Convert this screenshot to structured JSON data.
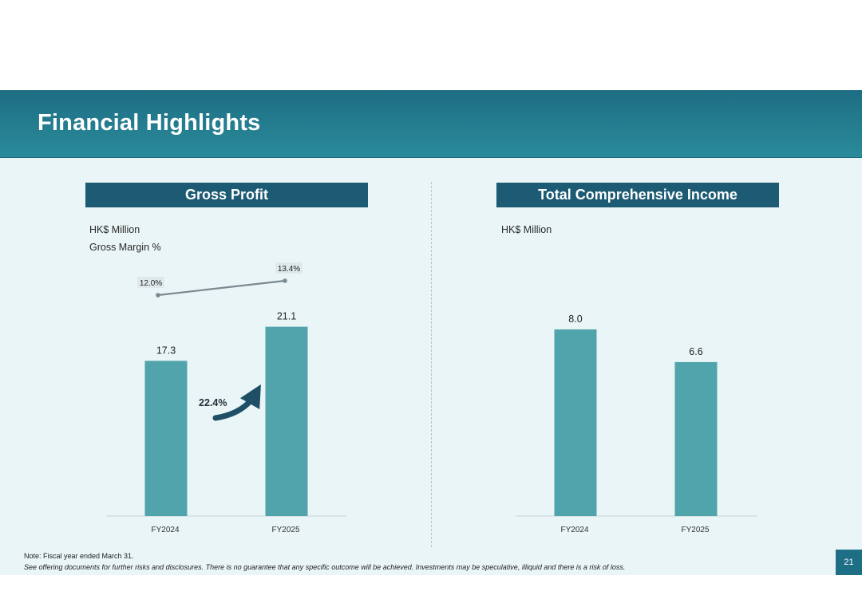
{
  "header": {
    "title": "Financial Highlights"
  },
  "colors": {
    "bar": "#51a4ab",
    "banner": "#1c5b73",
    "line": "#7a8a90",
    "arrow": "#1f4f66",
    "axis": "#c8d3d6"
  },
  "chart_data": [
    {
      "type": "bar",
      "title": "Gross Profit",
      "unit_label": "HK$ Million",
      "secondary_label": "Gross Margin %",
      "categories": [
        "FY2024",
        "FY2025"
      ],
      "values": [
        17.3,
        21.1
      ],
      "value_labels": [
        "17.3",
        "21.1"
      ],
      "ylim": [
        0,
        24
      ],
      "growth_label": "22.4%",
      "line_series": {
        "name": "Gross Margin %",
        "values": [
          12.0,
          13.4
        ],
        "labels": [
          "12.0%",
          "13.4%"
        ]
      }
    },
    {
      "type": "bar",
      "title": "Total Comprehensive Income",
      "unit_label": "HK$ Million",
      "categories": [
        "FY2024",
        "FY2025"
      ],
      "values": [
        8.0,
        6.6
      ],
      "value_labels": [
        "8.0",
        "6.6"
      ],
      "ylim": [
        0,
        9.4
      ]
    }
  ],
  "footer": {
    "note": "Note: Fiscal year ended March 31.",
    "disclaimer": "See offering documents for further risks and disclosures. There is no guarantee that any specific outcome will be achieved. Investments may be speculative, illiquid and there is a risk of loss.",
    "page_number": "21"
  }
}
